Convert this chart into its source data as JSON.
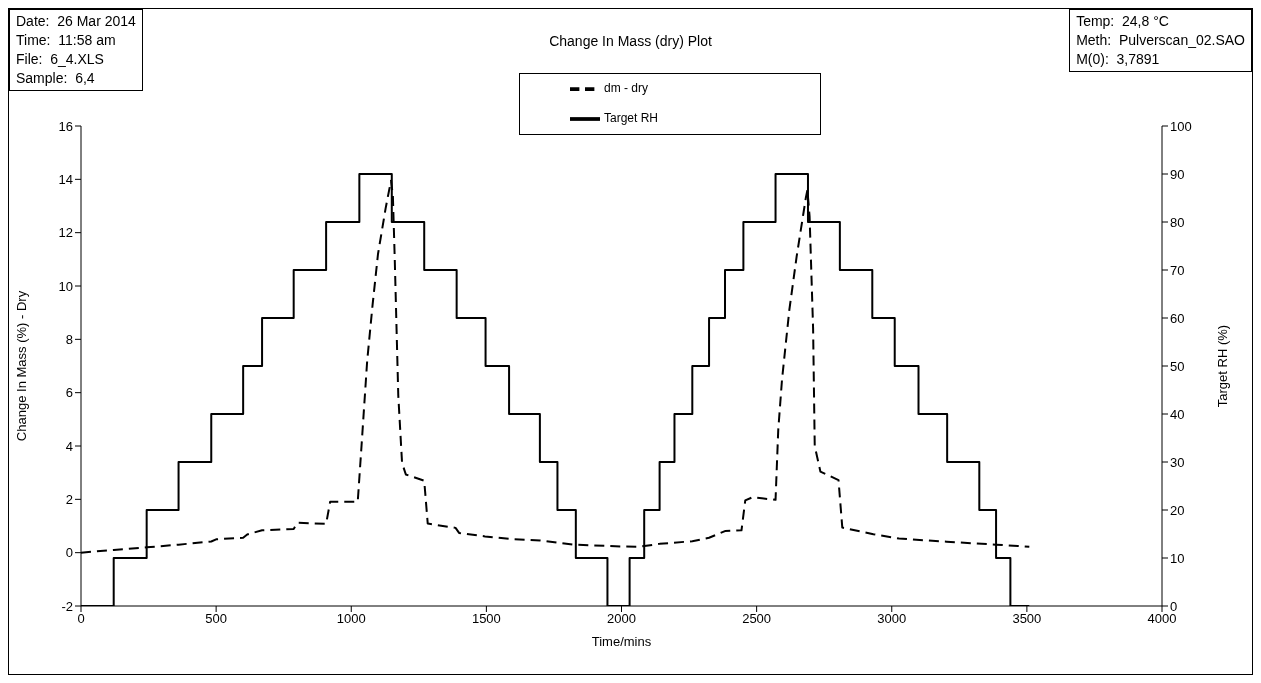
{
  "chart_data": {
    "type": "line",
    "title": "Change In Mass (dry) Plot",
    "xlabel": "Time/mins",
    "ylabel": "Change In Mass (%) - Dry",
    "y2label": "Target RH (%)",
    "annotations": [
      "Date:  26 Mar 2014\nTime:  11:58 am\nFile:  6_4.XLS\nSample:  6,4",
      "Temp:  24,8 °C\nMeth:  Pulverscan_02.SAO\nM(0):  3,7891"
    ],
    "xlim": [
      0,
      4000
    ],
    "xticks": [
      0,
      500,
      1000,
      1500,
      2000,
      2500,
      3000,
      3500,
      4000
    ],
    "ylim": [
      -2,
      16
    ],
    "yticks": [
      -2,
      0,
      2,
      4,
      6,
      8,
      10,
      12,
      14,
      16
    ],
    "y2lim": [
      0,
      100
    ],
    "y2ticks": [
      0,
      10,
      20,
      30,
      40,
      50,
      60,
      70,
      80,
      90,
      100
    ],
    "grid": false,
    "legend": "top",
    "marker": "none",
    "series": [
      {
        "name": "dm - dry",
        "type": "line",
        "line_style": "dashed",
        "color": "#000000",
        "x": [
          0,
          121,
          243,
          361,
          482,
          500,
          600,
          615,
          670,
          787,
          800,
          907,
          922,
          1024,
          1038,
          1059,
          1079,
          1099,
          1127,
          1147,
          1154,
          1161,
          1174,
          1188,
          1202,
          1270,
          1283,
          1386,
          1399,
          1495,
          1590,
          1699,
          1822,
          1999,
          2065,
          2141,
          2262,
          2324,
          2383,
          2444,
          2458,
          2485,
          2570,
          2580,
          2594,
          2621,
          2648,
          2682,
          2688,
          2696,
          2709,
          2715,
          2736,
          2803,
          2817,
          2932,
          3027,
          3203,
          3386,
          3509
        ],
        "values": [
          0,
          0.1,
          0.2,
          0.3,
          0.42,
          0.5,
          0.56,
          0.68,
          0.84,
          0.89,
          1.12,
          1.08,
          1.91,
          1.91,
          4.0,
          7.2,
          9.3,
          11.2,
          12.9,
          13.95,
          13.4,
          11.0,
          5.9,
          3.37,
          2.93,
          2.7,
          1.09,
          0.93,
          0.74,
          0.61,
          0.51,
          0.46,
          0.3,
          0.23,
          0.22,
          0.33,
          0.43,
          0.56,
          0.81,
          0.84,
          1.96,
          2.08,
          1.98,
          4.6,
          6.5,
          9.1,
          11.1,
          13.3,
          13.6,
          12.6,
          8.4,
          4.0,
          3.04,
          2.72,
          0.94,
          0.69,
          0.53,
          0.41,
          0.3,
          0.22
        ]
      },
      {
        "name": "Target RH",
        "type": "step",
        "axis": "y2",
        "line_style": "solid",
        "color": "#000000",
        "x": [
          0,
          121,
          243,
          361,
          482,
          600,
          670,
          787,
          907,
          1030,
          1150,
          1270,
          1390,
          1497,
          1584,
          1698,
          1763,
          1831,
          1948,
          2030,
          2084,
          2141,
          2196,
          2262,
          2324,
          2383,
          2451,
          2570,
          2690,
          2808,
          2928,
          3011,
          3099,
          3205,
          3324,
          3386,
          3439,
          3509
        ],
        "values": [
          0,
          10,
          20,
          30,
          40,
          50,
          60,
          70,
          80,
          90,
          80,
          70,
          60,
          50,
          40,
          30,
          20,
          10,
          0,
          10,
          20,
          30,
          40,
          50,
          60,
          70,
          80,
          90,
          80,
          70,
          60,
          50,
          40,
          30,
          20,
          10,
          0,
          0
        ]
      }
    ]
  }
}
